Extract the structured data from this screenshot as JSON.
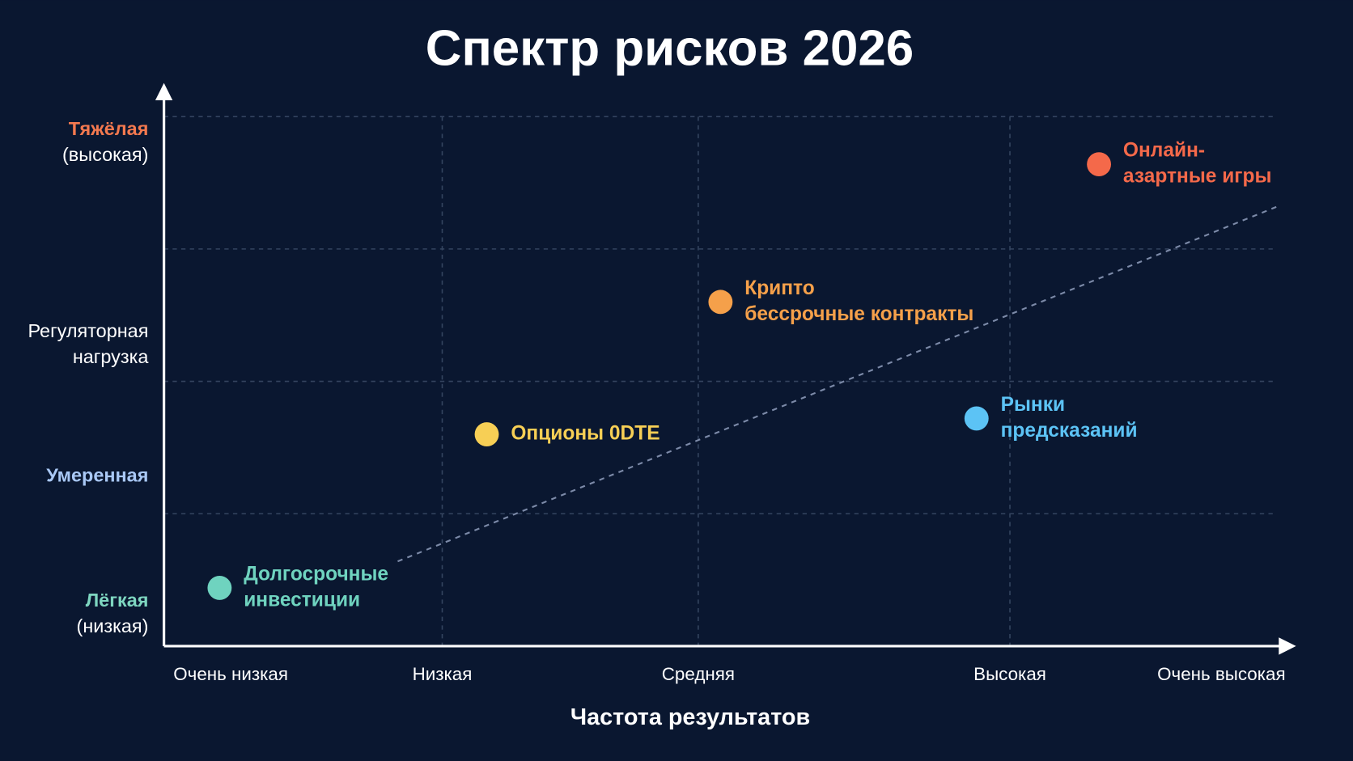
{
  "chart_data": {
    "type": "scatter",
    "title": "Спектр рисков 2026",
    "x_label": "Частота результатов",
    "y_label": [
      "Регуляторная",
      "нагрузка"
    ],
    "xlim": [
      0,
      100
    ],
    "ylim": [
      0,
      100
    ],
    "xticks": [
      {
        "value": 6,
        "label": "Очень низкая"
      },
      {
        "value": 25,
        "label": "Низкая"
      },
      {
        "value": 48,
        "label": "Средняя"
      },
      {
        "value": 76,
        "label": "Высокая"
      },
      {
        "value": 95,
        "label": "Очень высокая"
      }
    ],
    "yticks": [
      {
        "value": 95,
        "label": [
          "Тяжёлая",
          "(высокая)"
        ],
        "color": "#f4794f"
      },
      {
        "value": 32,
        "label": [
          "Умеренная"
        ],
        "color": "#a9c8f5"
      },
      {
        "value": 6,
        "label": [
          "Лёгкая",
          "(низкая)"
        ],
        "color": "#7ed6c0"
      }
    ],
    "xgrid": [
      25,
      48,
      76
    ],
    "ygrid": [
      25,
      50,
      75,
      100
    ],
    "points": [
      {
        "label": [
          "Долгосрочные",
          "инвестиции"
        ],
        "color": "#6fd3bf",
        "x": 5,
        "y": 11
      },
      {
        "label": [
          "Опционы 0DTE"
        ],
        "color": "#f7cf55",
        "x": 29,
        "y": 40
      },
      {
        "label": [
          "Крипто",
          "бессрочные контракты"
        ],
        "color": "#f5a04a",
        "x": 50,
        "y": 65
      },
      {
        "label": [
          "Рынки",
          "предсказаний"
        ],
        "color": "#5cc3f5",
        "x": 73,
        "y": 43
      },
      {
        "label": [
          "Онлайн-",
          "азартные игры"
        ],
        "color": "#f4694a",
        "x": 84,
        "y": 91
      }
    ],
    "trend": {
      "x": [
        21,
        100
      ],
      "y": [
        16,
        83
      ]
    }
  }
}
